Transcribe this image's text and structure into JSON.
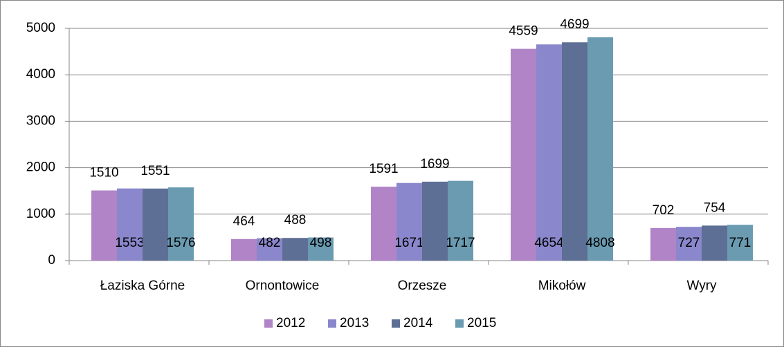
{
  "chart_data": {
    "type": "bar",
    "categories": [
      "Łaziska Górne",
      "Ornontowice",
      "Orzesze",
      "Mikołów",
      "Wyry"
    ],
    "series": [
      {
        "name": "2012",
        "color": "#b084c6",
        "values": [
          1510,
          464,
          1591,
          4559,
          702
        ]
      },
      {
        "name": "2013",
        "color": "#8a87cc",
        "values": [
          1553,
          482,
          1671,
          4654,
          727
        ]
      },
      {
        "name": "2014",
        "color": "#5e6f96",
        "values": [
          1551,
          488,
          1699,
          4699,
          754
        ]
      },
      {
        "name": "2015",
        "color": "#6a9bb1",
        "values": [
          1576,
          498,
          1717,
          4808,
          771
        ]
      }
    ],
    "ylim": [
      0,
      5000
    ],
    "yticks": [
      0,
      1000,
      2000,
      3000,
      4000,
      5000
    ],
    "grid": true,
    "legend": "bottom"
  }
}
